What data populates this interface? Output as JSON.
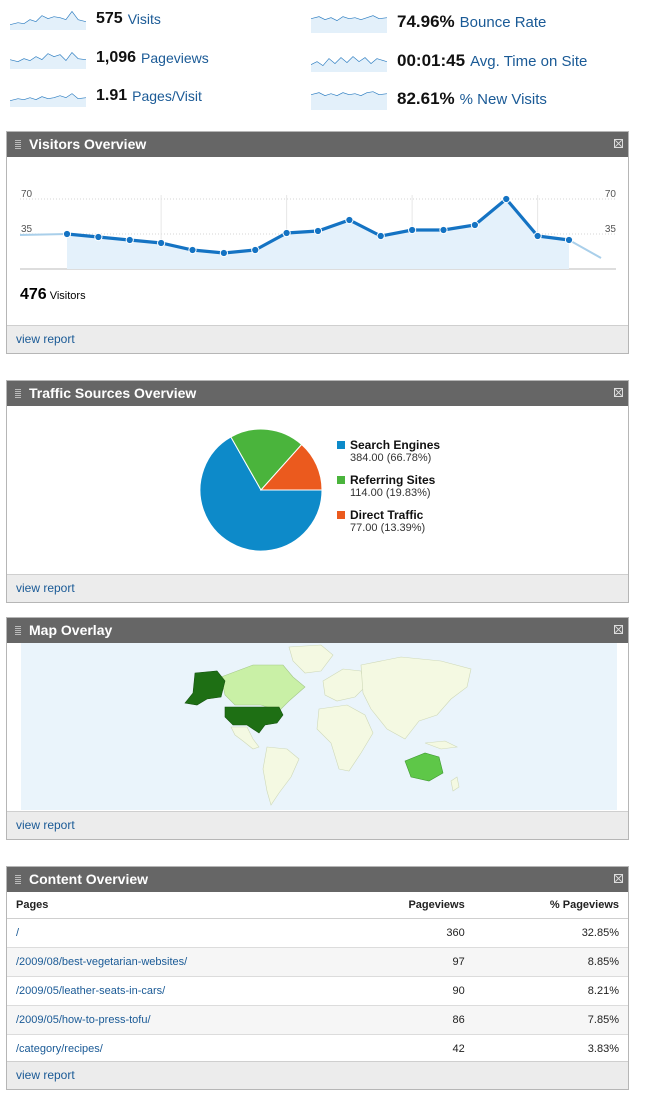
{
  "metrics": [
    {
      "value": "575",
      "label": "Visits"
    },
    {
      "value": "1,096",
      "label": "Pageviews"
    },
    {
      "value": "1.91",
      "label": "Pages/Visit"
    },
    {
      "value": "74.96%",
      "label": "Bounce Rate"
    },
    {
      "value": "00:01:45",
      "label": "Avg. Time on Site"
    },
    {
      "value": "82.61%",
      "label": "% New Visits"
    }
  ],
  "visitors_overview": {
    "title": "Visitors Overview",
    "footer_link": "view report",
    "total_value": "476",
    "total_label": "Visitors",
    "chart_data": {
      "type": "area",
      "y_ticks": [
        "70",
        "35"
      ],
      "ylim": [
        0,
        70
      ],
      "grid": true,
      "values": [
        35,
        32,
        29,
        26,
        19,
        16,
        19,
        36,
        38,
        49,
        33,
        39,
        39,
        44,
        70,
        33,
        29
      ],
      "leading_value": 34,
      "trailing_value": 11
    }
  },
  "traffic_sources": {
    "title": "Traffic Sources Overview",
    "footer_link": "view report",
    "chart_data": {
      "type": "pie",
      "slices": [
        {
          "name": "Search Engines",
          "value": 384.0,
          "percent": 66.78,
          "detail": "384.00 (66.78%)",
          "color": "#0d8ac9"
        },
        {
          "name": "Referring Sites",
          "value": 114.0,
          "percent": 19.83,
          "detail": "114.00 (19.83%)",
          "color": "#4ab43c"
        },
        {
          "name": "Direct Traffic",
          "value": 77.0,
          "percent": 13.39,
          "detail": "77.00 (13.39%)",
          "color": "#eb5a1e"
        }
      ]
    }
  },
  "map_overlay": {
    "title": "Map Overlay",
    "footer_link": "view report",
    "colors": {
      "ocean": "#eaf4fb",
      "land": "#f4f9e2",
      "light": "#c9f0a6",
      "medium": "#5ec748",
      "dark": "#1e6f14"
    }
  },
  "content_overview": {
    "title": "Content Overview",
    "footer_link": "view report",
    "columns": [
      "Pages",
      "Pageviews",
      "% Pageviews"
    ],
    "rows": [
      {
        "page": "/",
        "pageviews": "360",
        "pct": "32.85%"
      },
      {
        "page": "/2009/08/best-vegetarian-websites/",
        "pageviews": "97",
        "pct": "8.85%"
      },
      {
        "page": "/2009/05/leather-seats-in-cars/",
        "pageviews": "90",
        "pct": "8.21%"
      },
      {
        "page": "/2009/05/how-to-press-tofu/",
        "pageviews": "86",
        "pct": "7.85%"
      },
      {
        "page": "/category/recipes/",
        "pageviews": "42",
        "pct": "3.83%"
      }
    ]
  }
}
